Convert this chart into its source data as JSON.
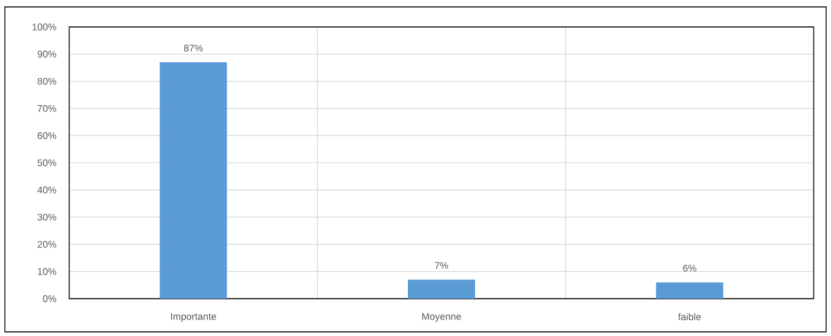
{
  "chart_data": {
    "type": "bar",
    "categories": [
      "Importante",
      "Moyenne",
      "faible"
    ],
    "values": [
      87,
      7,
      6
    ],
    "color": "#5b9bd5",
    "value_labels": [
      "87%",
      "7%",
      "6%"
    ],
    "ylim": [
      0,
      100
    ],
    "yticks": [
      {
        "value": 0,
        "label": "0%"
      },
      {
        "value": 10,
        "label": "10%"
      },
      {
        "value": 20,
        "label": "20%"
      },
      {
        "value": 30,
        "label": "30%"
      },
      {
        "value": 40,
        "label": "40%"
      },
      {
        "value": 50,
        "label": "50%"
      },
      {
        "value": 60,
        "label": "60%"
      },
      {
        "value": 70,
        "label": "70%"
      },
      {
        "value": 80,
        "label": "80%"
      },
      {
        "value": 90,
        "label": "90%"
      },
      {
        "value": 100,
        "label": "100%"
      }
    ],
    "grid": true
  }
}
